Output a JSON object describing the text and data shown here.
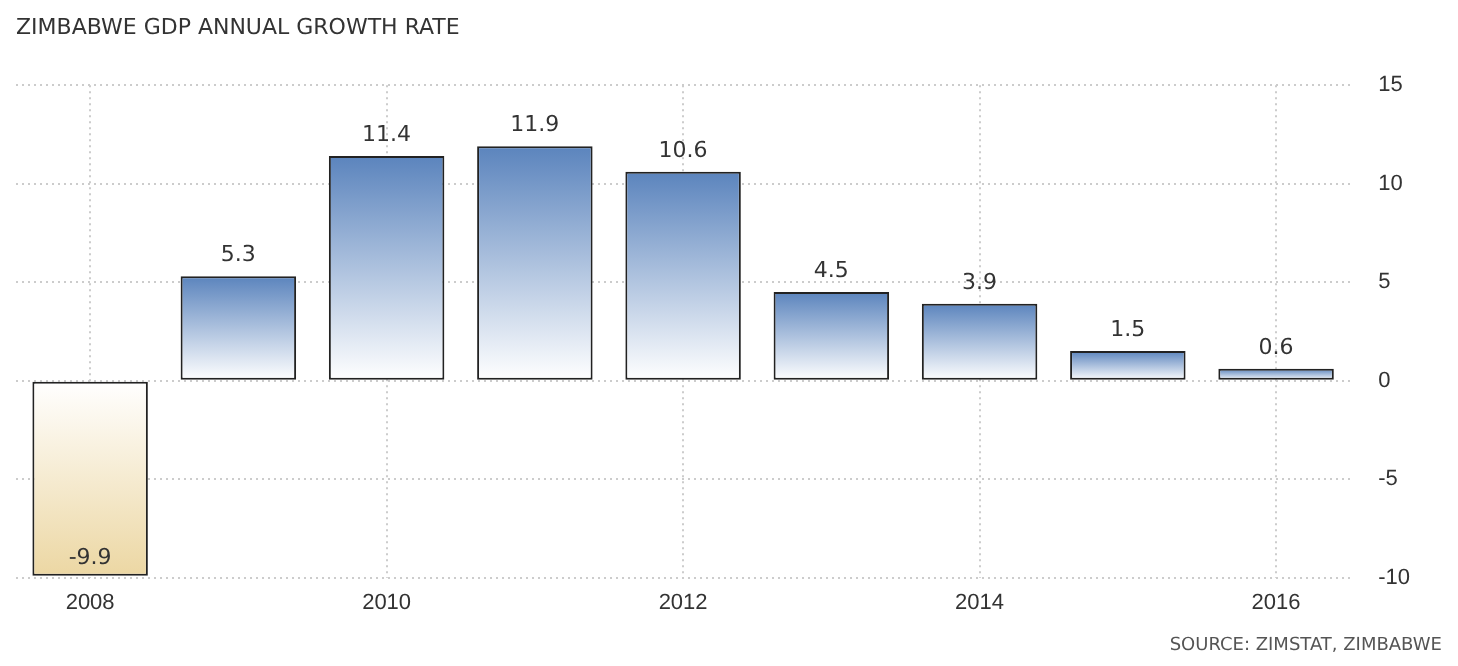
{
  "chart_data": {
    "type": "bar",
    "title": "ZIMBABWE GDP ANNUAL GROWTH RATE",
    "categories": [
      "2008",
      null,
      "2010",
      null,
      "2012",
      null,
      "2014",
      null,
      "2016"
    ],
    "values": [
      -9.9,
      5.3,
      11.4,
      11.9,
      10.6,
      4.5,
      3.9,
      1.5,
      0.6
    ],
    "colors": [
      "#ecd7a3",
      "#5b84bd",
      "#5b84bd",
      "#5b84bd",
      "#5b84bd",
      "#5b84bd",
      "#5b84bd",
      "#5b84bd",
      "#5b84bd"
    ],
    "ylim": [
      -10,
      15
    ],
    "yticks": [
      -10,
      -5,
      0,
      5,
      10,
      15
    ],
    "grid": true,
    "legend": false,
    "data_labels": true,
    "annotations": [
      "SOURCE: ZIMSTAT, ZIMBABWE"
    ]
  }
}
